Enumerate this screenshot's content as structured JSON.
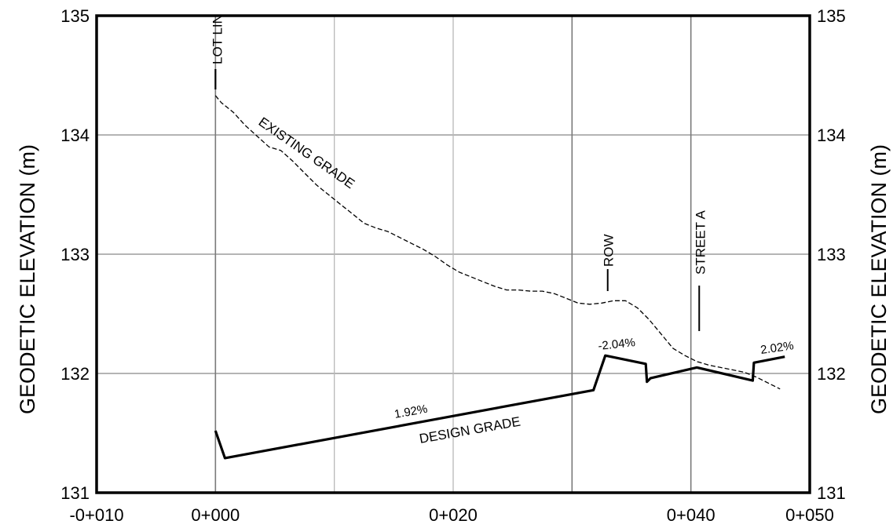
{
  "chart_data": {
    "type": "line",
    "xlabel": "",
    "ylabel": "GEODETIC ELEVATION (m)",
    "ylabel_right": "GEODETIC ELEVATION (m)",
    "xlim": [
      -10,
      50
    ],
    "ylim": [
      131,
      135
    ],
    "x_ticks": [
      {
        "value": -10,
        "label": "-0+010"
      },
      {
        "value": 0,
        "label": "0+000"
      },
      {
        "value": 20,
        "label": "0+020"
      },
      {
        "value": 40,
        "label": "0+040"
      },
      {
        "value": 50,
        "label": "0+050"
      }
    ],
    "y_ticks": [
      {
        "value": 131,
        "label": "131"
      },
      {
        "value": 132,
        "label": "132"
      },
      {
        "value": 133,
        "label": "133"
      },
      {
        "value": 134,
        "label": "134"
      },
      {
        "value": 135,
        "label": "135"
      }
    ],
    "grid": true,
    "grid_dark_x": [
      0,
      30,
      40
    ],
    "grid_light_x": [
      10,
      20
    ],
    "series": [
      {
        "name": "EXISTING GRADE",
        "style": "dashed",
        "x": [
          0,
          0.5,
          1.5,
          2.5,
          3.5,
          4.5,
          5.5,
          6.5,
          7.5,
          8.5,
          9.5,
          10.5,
          11.5,
          12.5,
          13.5,
          14.5,
          15.5,
          16.5,
          17.5,
          18.5,
          19.5,
          20.5,
          21.5,
          22.5,
          23.5,
          24.5,
          25.5,
          26.5,
          27.5,
          28.5,
          29.5,
          30.5,
          31.5,
          32.5,
          33.5,
          34.5,
          35.5,
          36.5,
          37.5,
          38.5,
          39.5,
          40.5,
          41.5,
          42.5,
          43.5,
          44.5,
          45.5,
          46.5,
          47.5
        ],
        "y": [
          134.33,
          134.27,
          134.19,
          134.08,
          133.99,
          133.9,
          133.87,
          133.78,
          133.68,
          133.58,
          133.5,
          133.42,
          133.34,
          133.26,
          133.22,
          133.19,
          133.14,
          133.09,
          133.04,
          132.98,
          132.91,
          132.85,
          132.81,
          132.77,
          132.73,
          132.7,
          132.7,
          132.69,
          132.69,
          132.67,
          132.63,
          132.59,
          132.58,
          132.59,
          132.61,
          132.61,
          132.55,
          132.45,
          132.33,
          132.21,
          132.15,
          132.1,
          132.07,
          132.05,
          132.03,
          132.01,
          131.97,
          131.92,
          131.87
        ]
      },
      {
        "name": "DESIGN GRADE",
        "style": "solid",
        "x": [
          0,
          0.8,
          31.8,
          32.8,
          36.2,
          36.3,
          36.6,
          40.5,
          45.2,
          45.3,
          47.9
        ],
        "y": [
          131.52,
          131.29,
          131.86,
          132.15,
          132.08,
          131.93,
          131.96,
          132.05,
          131.94,
          132.09,
          132.14
        ]
      }
    ],
    "annotations": [
      {
        "text": "LOT LIN",
        "x": 0
      },
      {
        "text": "ROW",
        "x": 33
      },
      {
        "text": "STREET  A",
        "x": 40.7
      },
      {
        "text": "EXISTING GRADE"
      },
      {
        "text": "DESIGN  GRADE"
      },
      {
        "text": "1.92%"
      },
      {
        "text": "-2.04%"
      },
      {
        "text": "2.02%"
      }
    ]
  }
}
